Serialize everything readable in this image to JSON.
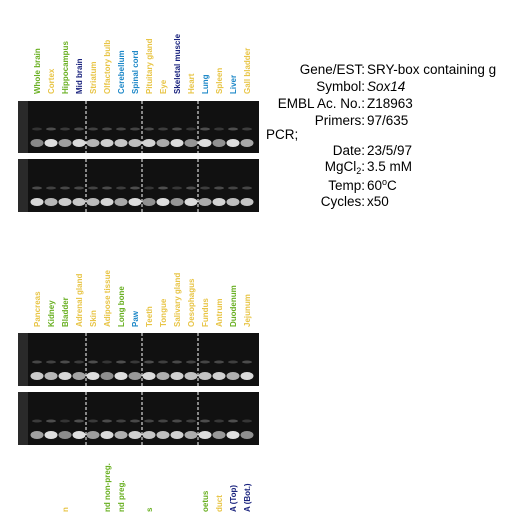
{
  "panel1": {
    "lanes": [
      {
        "label": "Whole brain",
        "color": "#6ab023"
      },
      {
        "label": "Cortex",
        "color": "#e8c547"
      },
      {
        "label": "Hippocampus",
        "color": "#6ab023"
      },
      {
        "label": "Mid brain",
        "color": "#1a237e"
      },
      {
        "label": "Striatum",
        "color": "#e8c547"
      },
      {
        "label": "Olfactory bulb",
        "color": "#e8c547"
      },
      {
        "label": "Cerebellum",
        "color": "#1e88c8"
      },
      {
        "label": "Spinal cord",
        "color": "#1e88c8"
      },
      {
        "label": "Pituitary gland",
        "color": "#e8c547"
      },
      {
        "label": "Eye",
        "color": "#e8c547"
      },
      {
        "label": "Skeletal muscle",
        "color": "#1a237e"
      },
      {
        "label": "Heart",
        "color": "#e8c547"
      },
      {
        "label": "Lung",
        "color": "#1e88c8"
      },
      {
        "label": "Spleen",
        "color": "#e8c547"
      },
      {
        "label": "Liver",
        "color": "#1e88c8"
      },
      {
        "label": "Gall bladder",
        "color": "#e8c547"
      }
    ]
  },
  "panel2": {
    "lanes": [
      {
        "label": "Pancreas",
        "color": "#e8c547"
      },
      {
        "label": "Kidney",
        "color": "#6ab023"
      },
      {
        "label": "Bladder",
        "color": "#6ab023"
      },
      {
        "label": "Adrenal gland",
        "color": "#e8c547"
      },
      {
        "label": "Skin",
        "color": "#e8c547"
      },
      {
        "label": "Adipose tissue",
        "color": "#e8c547"
      },
      {
        "label": "Long bone",
        "color": "#6ab023"
      },
      {
        "label": "Paw",
        "color": "#1e88c8"
      },
      {
        "label": "Teeth",
        "color": "#e8c547"
      },
      {
        "label": "Tongue",
        "color": "#e8c547"
      },
      {
        "label": "Salivary gland",
        "color": "#e8c547"
      },
      {
        "label": "Oesophagus",
        "color": "#e8c547"
      },
      {
        "label": "Fundus",
        "color": "#e8c547"
      },
      {
        "label": "Antrum",
        "color": "#e8c547"
      },
      {
        "label": "Duodenum",
        "color": "#6ab023"
      },
      {
        "label": "Jejunum",
        "color": "#e8c547"
      }
    ]
  },
  "panel3": {
    "lanes": [
      {
        "label": "n",
        "color": "#e8c547",
        "lane": 3
      },
      {
        "label": "nd non-preg.",
        "color": "#6ab023",
        "lane": 6
      },
      {
        "label": "nd preg.",
        "color": "#6ab023",
        "lane": 7
      },
      {
        "label": "s",
        "color": "#6ab023",
        "lane": 9
      },
      {
        "label": "oetus",
        "color": "#6ab023",
        "lane": 13
      },
      {
        "label": "duct",
        "color": "#e8c547",
        "lane": 14
      },
      {
        "label": "A (Top)",
        "color": "#1a237e",
        "lane": 15
      },
      {
        "label": "A (Bot.)",
        "color": "#1a237e",
        "lane": 16
      }
    ]
  },
  "info": {
    "gene_label": "Gene/EST:",
    "gene": "SRY-box containing g",
    "symbol_label": "Symbol:",
    "symbol": "Sox14",
    "embl_label": "EMBL Ac. No.:",
    "embl": "Z18963",
    "primers_label": "Primers:",
    "primers": "97/635",
    "pcr": "PCR;",
    "date_label": "Date:",
    "date": "23/5/97",
    "mg_label": "MgCl",
    "mg_sub": "2",
    "mg_colon": ":",
    "mg": "3.5 mM",
    "temp_label": "Temp:",
    "temp": "60",
    "temp_sup": "o",
    "temp_unit": "C",
    "cycles_label": "Cycles:",
    "cycles": "x50"
  }
}
